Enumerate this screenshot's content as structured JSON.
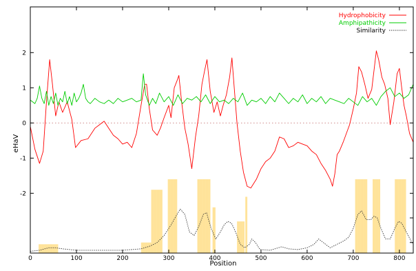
{
  "chart_data": {
    "type": "line",
    "xlabel": "Position",
    "ylabel": "eHaV",
    "xlim": [
      0,
      830
    ],
    "ylim": [
      -3.7,
      3.3
    ],
    "x_ticks": [
      0,
      100,
      200,
      300,
      400,
      500,
      600,
      700,
      800
    ],
    "y_ticks": [
      -2,
      -1,
      0,
      1,
      2
    ],
    "x_tick_labels": [
      "0",
      "100",
      "200",
      "300",
      "400",
      "500",
      "600",
      "700",
      "800"
    ],
    "y_tick_labels": [
      "-2",
      "-1",
      "0",
      "1",
      "2"
    ],
    "grid": false,
    "legend_position": "top-right",
    "series": [
      {
        "name": "Hydrophobicity",
        "color": "#ff0000",
        "style": "solid",
        "points": [
          [
            0,
            -0.1
          ],
          [
            10,
            -0.75
          ],
          [
            20,
            -1.15
          ],
          [
            28,
            -0.8
          ],
          [
            35,
            0.6
          ],
          [
            42,
            1.8
          ],
          [
            48,
            1.1
          ],
          [
            55,
            0.2
          ],
          [
            62,
            0.6
          ],
          [
            70,
            0.3
          ],
          [
            80,
            0.6
          ],
          [
            90,
            0.1
          ],
          [
            98,
            -0.7
          ],
          [
            110,
            -0.5
          ],
          [
            125,
            -0.45
          ],
          [
            140,
            -0.15
          ],
          [
            150,
            -0.05
          ],
          [
            160,
            0.05
          ],
          [
            170,
            -0.15
          ],
          [
            180,
            -0.35
          ],
          [
            190,
            -0.45
          ],
          [
            200,
            -0.6
          ],
          [
            210,
            -0.55
          ],
          [
            220,
            -0.7
          ],
          [
            230,
            -0.3
          ],
          [
            240,
            0.5
          ],
          [
            248,
            1.1
          ],
          [
            252,
            1.1
          ],
          [
            258,
            0.4
          ],
          [
            265,
            -0.2
          ],
          [
            275,
            -0.35
          ],
          [
            282,
            -0.15
          ],
          [
            290,
            0.15
          ],
          [
            300,
            0.5
          ],
          [
            305,
            0.15
          ],
          [
            312,
            1.0
          ],
          [
            318,
            1.2
          ],
          [
            322,
            1.35
          ],
          [
            328,
            0.6
          ],
          [
            335,
            -0.15
          ],
          [
            342,
            -0.6
          ],
          [
            350,
            -1.3
          ],
          [
            358,
            -0.4
          ],
          [
            365,
            0.2
          ],
          [
            372,
            1.1
          ],
          [
            378,
            1.5
          ],
          [
            383,
            1.8
          ],
          [
            390,
            0.9
          ],
          [
            398,
            0.3
          ],
          [
            405,
            0.6
          ],
          [
            412,
            0.2
          ],
          [
            418,
            0.5
          ],
          [
            425,
            0.8
          ],
          [
            432,
            1.3
          ],
          [
            437,
            1.85
          ],
          [
            442,
            1.0
          ],
          [
            448,
            0.0
          ],
          [
            455,
            -0.8
          ],
          [
            462,
            -1.4
          ],
          [
            470,
            -1.8
          ],
          [
            478,
            -1.85
          ],
          [
            490,
            -1.6
          ],
          [
            500,
            -1.3
          ],
          [
            510,
            -1.1
          ],
          [
            520,
            -1.0
          ],
          [
            530,
            -0.8
          ],
          [
            540,
            -0.4
          ],
          [
            550,
            -0.45
          ],
          [
            560,
            -0.7
          ],
          [
            570,
            -0.65
          ],
          [
            580,
            -0.55
          ],
          [
            590,
            -0.6
          ],
          [
            600,
            -0.65
          ],
          [
            610,
            -0.8
          ],
          [
            620,
            -0.9
          ],
          [
            630,
            -1.15
          ],
          [
            640,
            -1.35
          ],
          [
            650,
            -1.6
          ],
          [
            655,
            -1.8
          ],
          [
            660,
            -1.45
          ],
          [
            665,
            -0.9
          ],
          [
            670,
            -0.8
          ],
          [
            678,
            -0.55
          ],
          [
            685,
            -0.3
          ],
          [
            692,
            -0.05
          ],
          [
            700,
            0.4
          ],
          [
            707,
            0.85
          ],
          [
            712,
            1.6
          ],
          [
            718,
            1.45
          ],
          [
            725,
            1.1
          ],
          [
            732,
            0.7
          ],
          [
            740,
            0.95
          ],
          [
            745,
            1.5
          ],
          [
            750,
            2.05
          ],
          [
            755,
            1.8
          ],
          [
            762,
            1.3
          ],
          [
            768,
            1.1
          ],
          [
            775,
            0.7
          ],
          [
            780,
            -0.05
          ],
          [
            788,
            0.6
          ],
          [
            795,
            1.4
          ],
          [
            800,
            1.55
          ],
          [
            805,
            1.0
          ],
          [
            810,
            0.5
          ],
          [
            815,
            0.2
          ],
          [
            822,
            -0.3
          ],
          [
            830,
            -0.55
          ]
        ]
      },
      {
        "name": "Amphipathicity",
        "color": "#00cc00",
        "style": "solid",
        "points": [
          [
            0,
            0.65
          ],
          [
            10,
            0.55
          ],
          [
            15,
            0.7
          ],
          [
            20,
            1.05
          ],
          [
            25,
            0.7
          ],
          [
            30,
            0.55
          ],
          [
            35,
            0.9
          ],
          [
            40,
            0.5
          ],
          [
            45,
            0.75
          ],
          [
            50,
            0.55
          ],
          [
            55,
            0.85
          ],
          [
            60,
            0.5
          ],
          [
            65,
            0.7
          ],
          [
            70,
            0.6
          ],
          [
            75,
            0.9
          ],
          [
            80,
            0.55
          ],
          [
            85,
            0.75
          ],
          [
            90,
            0.5
          ],
          [
            95,
            0.85
          ],
          [
            100,
            0.6
          ],
          [
            105,
            0.7
          ],
          [
            110,
            0.85
          ],
          [
            115,
            1.1
          ],
          [
            120,
            0.7
          ],
          [
            125,
            0.6
          ],
          [
            130,
            0.55
          ],
          [
            140,
            0.7
          ],
          [
            150,
            0.6
          ],
          [
            160,
            0.55
          ],
          [
            170,
            0.65
          ],
          [
            180,
            0.55
          ],
          [
            190,
            0.7
          ],
          [
            200,
            0.6
          ],
          [
            210,
            0.65
          ],
          [
            220,
            0.7
          ],
          [
            230,
            0.6
          ],
          [
            240,
            0.65
          ],
          [
            245,
            1.4
          ],
          [
            250,
            0.8
          ],
          [
            258,
            0.5
          ],
          [
            265,
            0.7
          ],
          [
            272,
            0.55
          ],
          [
            280,
            0.85
          ],
          [
            290,
            0.6
          ],
          [
            300,
            0.75
          ],
          [
            310,
            0.5
          ],
          [
            320,
            0.8
          ],
          [
            330,
            0.55
          ],
          [
            340,
            0.7
          ],
          [
            350,
            0.65
          ],
          [
            360,
            0.75
          ],
          [
            370,
            0.6
          ],
          [
            380,
            0.8
          ],
          [
            390,
            0.55
          ],
          [
            400,
            0.75
          ],
          [
            410,
            0.6
          ],
          [
            420,
            0.65
          ],
          [
            430,
            0.55
          ],
          [
            440,
            0.7
          ],
          [
            450,
            0.6
          ],
          [
            460,
            0.85
          ],
          [
            470,
            0.5
          ],
          [
            480,
            0.65
          ],
          [
            490,
            0.6
          ],
          [
            500,
            0.7
          ],
          [
            510,
            0.55
          ],
          [
            520,
            0.75
          ],
          [
            530,
            0.6
          ],
          [
            540,
            0.85
          ],
          [
            550,
            0.7
          ],
          [
            560,
            0.55
          ],
          [
            570,
            0.7
          ],
          [
            580,
            0.6
          ],
          [
            590,
            0.8
          ],
          [
            600,
            0.55
          ],
          [
            610,
            0.7
          ],
          [
            620,
            0.6
          ],
          [
            630,
            0.75
          ],
          [
            640,
            0.55
          ],
          [
            650,
            0.7
          ],
          [
            660,
            0.65
          ],
          [
            670,
            0.6
          ],
          [
            680,
            0.55
          ],
          [
            690,
            0.7
          ],
          [
            700,
            0.6
          ],
          [
            710,
            0.5
          ],
          [
            720,
            0.75
          ],
          [
            730,
            0.6
          ],
          [
            740,
            0.7
          ],
          [
            750,
            0.5
          ],
          [
            760,
            0.75
          ],
          [
            770,
            0.9
          ],
          [
            780,
            1.0
          ],
          [
            790,
            0.75
          ],
          [
            800,
            0.85
          ],
          [
            810,
            0.7
          ],
          [
            820,
            0.8
          ],
          [
            830,
            1.1
          ]
        ]
      },
      {
        "name": "Similarity",
        "color": "#333333",
        "style": "dotted",
        "points": [
          [
            0,
            -3.65
          ],
          [
            20,
            -3.62
          ],
          [
            40,
            -3.55
          ],
          [
            55,
            -3.55
          ],
          [
            70,
            -3.58
          ],
          [
            100,
            -3.62
          ],
          [
            150,
            -3.62
          ],
          [
            200,
            -3.62
          ],
          [
            240,
            -3.58
          ],
          [
            260,
            -3.5
          ],
          [
            275,
            -3.4
          ],
          [
            290,
            -3.2
          ],
          [
            305,
            -2.9
          ],
          [
            318,
            -2.6
          ],
          [
            325,
            -2.45
          ],
          [
            335,
            -2.6
          ],
          [
            345,
            -3.1
          ],
          [
            355,
            -3.2
          ],
          [
            365,
            -2.95
          ],
          [
            375,
            -2.6
          ],
          [
            382,
            -2.55
          ],
          [
            392,
            -3.0
          ],
          [
            402,
            -3.3
          ],
          [
            412,
            -3.1
          ],
          [
            420,
            -2.9
          ],
          [
            428,
            -2.8
          ],
          [
            436,
            -2.85
          ],
          [
            445,
            -3.1
          ],
          [
            455,
            -3.45
          ],
          [
            465,
            -3.55
          ],
          [
            475,
            -3.45
          ],
          [
            480,
            -3.3
          ],
          [
            488,
            -3.4
          ],
          [
            498,
            -3.6
          ],
          [
            520,
            -3.62
          ],
          [
            545,
            -3.52
          ],
          [
            560,
            -3.58
          ],
          [
            580,
            -3.6
          ],
          [
            600,
            -3.55
          ],
          [
            615,
            -3.45
          ],
          [
            625,
            -3.3
          ],
          [
            635,
            -3.4
          ],
          [
            650,
            -3.55
          ],
          [
            665,
            -3.45
          ],
          [
            680,
            -3.35
          ],
          [
            690,
            -3.25
          ],
          [
            700,
            -3.0
          ],
          [
            710,
            -2.6
          ],
          [
            718,
            -2.5
          ],
          [
            728,
            -2.75
          ],
          [
            738,
            -2.75
          ],
          [
            745,
            -2.65
          ],
          [
            752,
            -2.7
          ],
          [
            760,
            -3.0
          ],
          [
            770,
            -3.3
          ],
          [
            780,
            -3.3
          ],
          [
            790,
            -3.0
          ],
          [
            798,
            -2.8
          ],
          [
            805,
            -2.85
          ],
          [
            815,
            -3.1
          ],
          [
            825,
            -3.35
          ],
          [
            830,
            -3.45
          ]
        ]
      }
    ],
    "shaded_regions": {
      "color": "#ffe39a",
      "regions": [
        [
          18,
          58,
          -3.45
        ],
        [
          240,
          262,
          -3.4
        ],
        [
          262,
          285,
          -1.9
        ],
        [
          298,
          316,
          -1.6
        ],
        [
          362,
          388,
          -1.6
        ],
        [
          395,
          400,
          -2.4
        ],
        [
          448,
          462,
          -2.8
        ],
        [
          466,
          468,
          -2.1
        ],
        [
          704,
          728,
          -1.6
        ],
        [
          742,
          756,
          -1.6
        ],
        [
          790,
          812,
          -1.6
        ]
      ]
    }
  }
}
